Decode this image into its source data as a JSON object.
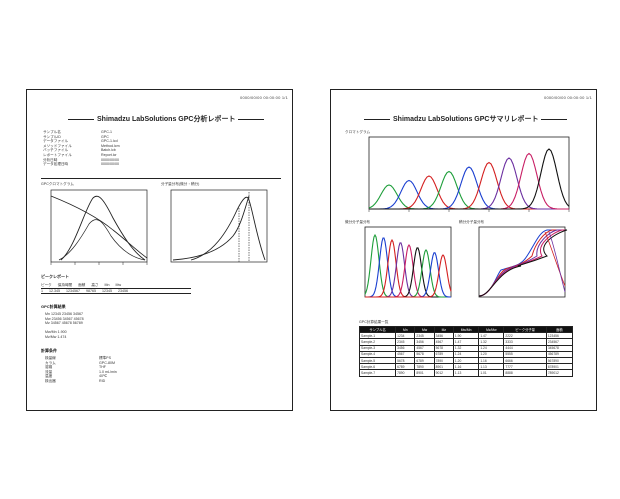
{
  "left_page": {
    "header_code": "0000/00/00 00:00:00 1/1",
    "title": "Shimadzu LabSolutions GPC分析レポート",
    "info_labels": [
      "サンプル名",
      "サンプルID",
      "データファイル",
      "メソッドファイル",
      "バッチファイル",
      "レポートファイル",
      "分析日時",
      "データ処理日時"
    ],
    "info_values": [
      "GPC-1",
      "GPC",
      "GPC-1.lcd",
      "Method.lcm",
      "Batch.lcb",
      "Report.lcr",
      "0000/00/00",
      "0000/00/00"
    ],
    "chart1_label": "GPCクロマトグラム",
    "chart2_label": "分子量分布(微分・積分)",
    "peak_report_label": "ピークレポート",
    "peak_columns": [
      "ピーク",
      "保持時間",
      "面積",
      "高さ",
      "Mn",
      "Mw"
    ],
    "peak_rows": [
      [
        "1",
        "12.345",
        "1234567",
        "98765",
        "12345",
        "23456"
      ]
    ],
    "calc_label": "GPC計算結果",
    "calc_lines": [
      "Mn  12345  23456  34567",
      "Mw  23456  34567  45678",
      "Mz  34567  45678  56789"
    ],
    "summary_lines": [
      "Mw/Mn  1.900",
      "Mz/Mw  1.474"
    ],
    "bottom_label": "計算条件",
    "bottom_rows": [
      [
        "検量線",
        "標準PS"
      ],
      [
        "カラム",
        "GPC-80M"
      ],
      [
        "溶媒",
        "THF"
      ],
      [
        "流量",
        "1.0 mL/min"
      ],
      [
        "温度",
        "40℃"
      ],
      [
        "検出器",
        "RID"
      ]
    ]
  },
  "right_page": {
    "header_code": "0000/00/00 00:00:00 1/1",
    "title": "Shimadzu LabSolutions GPCサマリレポート",
    "chart_top_label": "クロマトグラム",
    "chart_bl_label": "微分分子量分布",
    "chart_br_label": "積分分子量分布",
    "table_label": "GPC計算結果一覧",
    "table_columns": [
      "サンプル名",
      "Mn",
      "Mw",
      "Mz",
      "Mw/Mn",
      "Mz/Mw",
      "ピーク分子量",
      "面積"
    ],
    "table_rows": [
      [
        "Sample-1",
        "1234",
        "2345",
        "3456",
        "1.90",
        "1.47",
        "2222",
        "123456"
      ],
      [
        "Sample-2",
        "2345",
        "3456",
        "4567",
        "1.47",
        "1.32",
        "3333",
        "234567"
      ],
      [
        "Sample-3",
        "3456",
        "4567",
        "5678",
        "1.32",
        "1.24",
        "4444",
        "345678"
      ],
      [
        "Sample-4",
        "4567",
        "5678",
        "6789",
        "1.24",
        "1.20",
        "5555",
        "456789"
      ],
      [
        "Sample-5",
        "5678",
        "6789",
        "7890",
        "1.20",
        "1.16",
        "6666",
        "567890"
      ],
      [
        "Sample-6",
        "6789",
        "7890",
        "8901",
        "1.16",
        "1.13",
        "7777",
        "678901"
      ],
      [
        "Sample-7",
        "7890",
        "8901",
        "9012",
        "1.13",
        "1.01",
        "8888",
        "789012"
      ]
    ],
    "series_colors": [
      "#1e9e3a",
      "#1a3fd0",
      "#d42020",
      "#6b2fa0",
      "#c81e64",
      "#111111"
    ]
  }
}
